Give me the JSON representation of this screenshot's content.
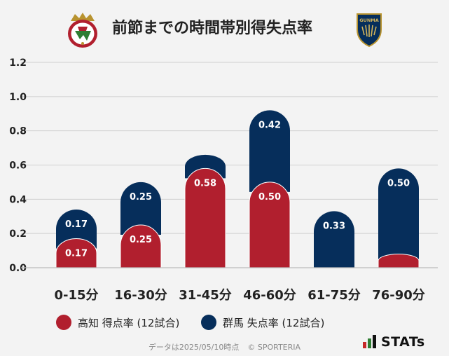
{
  "title": "前節までの時間帯別得失点率",
  "colors": {
    "home": "#b11f2e",
    "away": "#062e5b",
    "grid": "#cfcfcf"
  },
  "emblems": {
    "home": "kochi-united-emblem",
    "away": "thespa-gunma-emblem",
    "away_text": "GUNMA"
  },
  "legend": {
    "home": "高知 得点率 (12試合)",
    "away": "群馬 失点率 (12試合)"
  },
  "footer": {
    "source": "データは2025/05/10時点",
    "copyright": "© SPORTERIA"
  },
  "brand": {
    "label": "STATs"
  },
  "chart_data": {
    "type": "bar",
    "title": "前節までの時間帯別得失点率",
    "categories": [
      "0-15分",
      "16-30分",
      "31-45分",
      "46-60分",
      "61-75分",
      "76-90分"
    ],
    "series": [
      {
        "name": "高知 得点率 (12試合)",
        "values": [
          0.17,
          0.25,
          0.58,
          0.5,
          0.0,
          0.08
        ],
        "labels": [
          "0.17",
          "0.25",
          "0.58",
          "0.50",
          "",
          ""
        ]
      },
      {
        "name": "群馬 失点率 (12試合)",
        "values": [
          0.17,
          0.25,
          0.08,
          0.42,
          0.33,
          0.5
        ],
        "labels": [
          "0.17",
          "0.25",
          "",
          "0.42",
          "0.33",
          "0.50"
        ]
      }
    ],
    "stacked": true,
    "yticks": [
      "0.0",
      "0.2",
      "0.4",
      "0.6",
      "0.8",
      "1.0",
      "1.2"
    ],
    "ylim": [
      0,
      1.2
    ],
    "grid": true,
    "legend_position": "bottom"
  }
}
